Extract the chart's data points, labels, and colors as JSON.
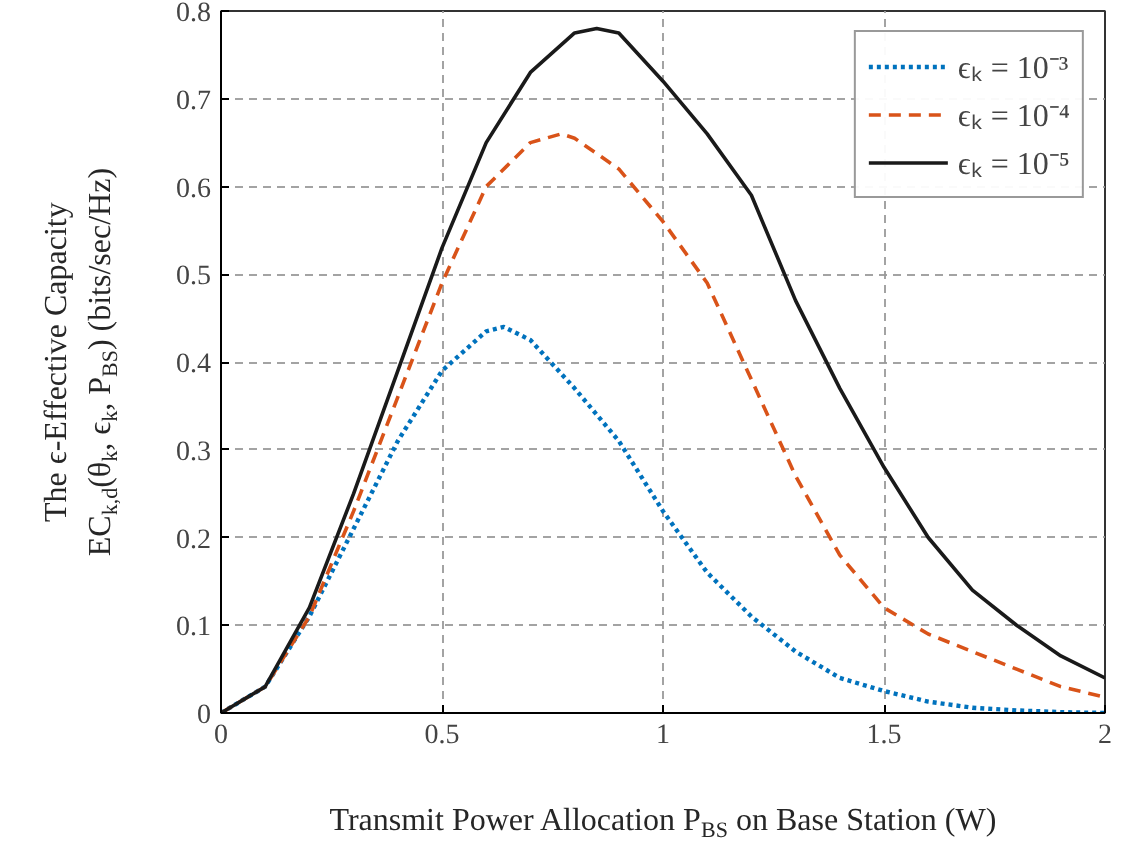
{
  "chart_data": {
    "type": "line",
    "xlabel": "Transmit Power Allocation P$_{BS}$ on Base Station (W)",
    "ylabel": "The ϵ-Effective Capacity\nEC$_{k,d}$(θ$_{k}$, ϵ$_{k}$, P$_{BS}$) (bits/sec/Hz)",
    "xlim": [
      0,
      2
    ],
    "ylim": [
      0,
      0.8
    ],
    "xticks": [
      0,
      0.5,
      1,
      1.5,
      2
    ],
    "yticks": [
      0,
      0.1,
      0.2,
      0.3,
      0.4,
      0.5,
      0.6,
      0.7,
      0.8
    ],
    "grid": true,
    "legend": "top right",
    "series": [
      {
        "name": "ϵₖ = 10⁻³",
        "color": "#0072bd",
        "line_style": "dotted",
        "x": [
          0,
          0.1,
          0.2,
          0.3,
          0.4,
          0.5,
          0.6,
          0.64,
          0.7,
          0.8,
          0.9,
          1.0,
          1.1,
          1.2,
          1.3,
          1.4,
          1.5,
          1.6,
          1.7,
          1.8,
          1.9,
          2.0
        ],
        "values": [
          0,
          0.03,
          0.11,
          0.21,
          0.31,
          0.39,
          0.435,
          0.44,
          0.425,
          0.37,
          0.31,
          0.23,
          0.16,
          0.11,
          0.07,
          0.04,
          0.025,
          0.013,
          0.006,
          0.003,
          0.001,
          0
        ]
      },
      {
        "name": "ϵₖ = 10⁻⁴",
        "color": "#d95319",
        "line_style": "dashed",
        "x": [
          0,
          0.1,
          0.2,
          0.3,
          0.4,
          0.5,
          0.6,
          0.7,
          0.77,
          0.8,
          0.9,
          1.0,
          1.1,
          1.2,
          1.3,
          1.4,
          1.5,
          1.6,
          1.7,
          1.8,
          1.9,
          2.0
        ],
        "values": [
          0,
          0.03,
          0.11,
          0.23,
          0.36,
          0.49,
          0.6,
          0.65,
          0.66,
          0.655,
          0.62,
          0.56,
          0.49,
          0.38,
          0.27,
          0.18,
          0.12,
          0.09,
          0.07,
          0.05,
          0.03,
          0.018
        ]
      },
      {
        "name": "ϵₖ = 10⁻⁵",
        "color": "#1a1a1a",
        "line_style": "solid",
        "x": [
          0,
          0.1,
          0.2,
          0.3,
          0.4,
          0.5,
          0.6,
          0.7,
          0.8,
          0.85,
          0.9,
          1.0,
          1.1,
          1.2,
          1.3,
          1.4,
          1.5,
          1.6,
          1.7,
          1.8,
          1.9,
          2.0
        ],
        "values": [
          0,
          0.03,
          0.12,
          0.25,
          0.39,
          0.53,
          0.65,
          0.73,
          0.775,
          0.78,
          0.775,
          0.72,
          0.66,
          0.59,
          0.47,
          0.37,
          0.28,
          0.2,
          0.14,
          0.1,
          0.065,
          0.04
        ]
      }
    ]
  }
}
